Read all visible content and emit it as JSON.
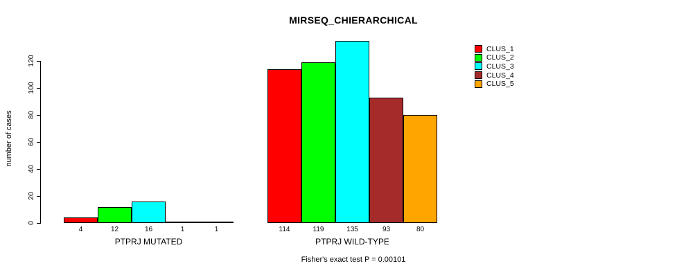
{
  "chart_data": {
    "type": "bar",
    "title": "MIRSEQ_CHIERARCHICAL",
    "ylabel": "number of cases",
    "xlabel": "",
    "ylim": [
      0,
      135
    ],
    "yticks": [
      0,
      20,
      40,
      60,
      80,
      100,
      120
    ],
    "grid": false,
    "legend_position": "right",
    "categories": [
      "PTPRJ MUTATED",
      "PTPRJ WILD-TYPE"
    ],
    "series": [
      {
        "name": "CLUS_1",
        "color": "#FF0000",
        "values": [
          4,
          114
        ]
      },
      {
        "name": "CLUS_2",
        "color": "#00FF00",
        "values": [
          12,
          119
        ]
      },
      {
        "name": "CLUS_3",
        "color": "#00FFFF",
        "values": [
          16,
          135
        ]
      },
      {
        "name": "CLUS_4",
        "color": "#A52A2A",
        "values": [
          1,
          93
        ]
      },
      {
        "name": "CLUS_5",
        "color": "#FFA500",
        "values": [
          1,
          80
        ]
      }
    ],
    "bar_value_labels": true,
    "annotation": "Fisher's exact test P = 0.00101"
  }
}
